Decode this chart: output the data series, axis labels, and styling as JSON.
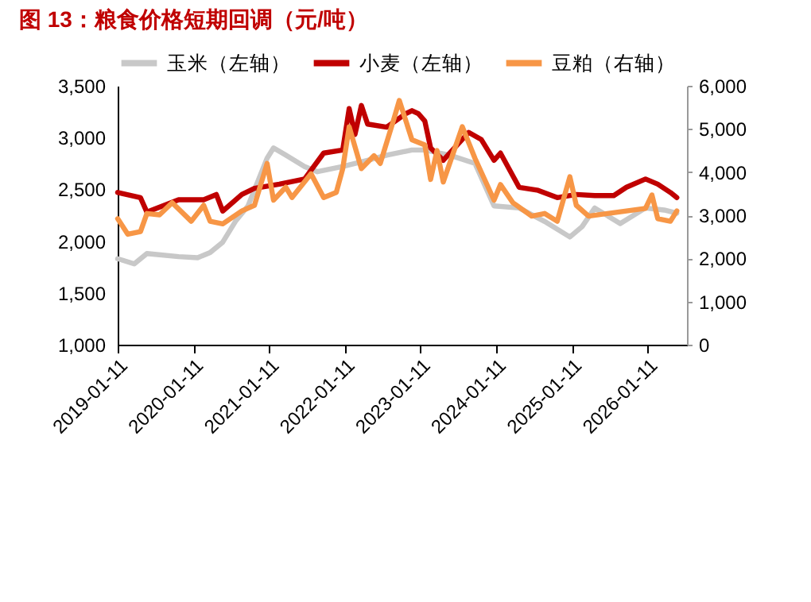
{
  "chart_data": {
    "type": "line",
    "title": "图 13：粮食价格短期回调（元/吨）",
    "xlim": [
      "2019-01-11",
      "2026-07-20"
    ],
    "xticks": [
      "2019-01-11",
      "2020-01-11",
      "2021-01-11",
      "2022-01-11",
      "2023-01-11",
      "2024-01-11",
      "2025-01-11",
      "2026-01-11"
    ],
    "ylim": [
      1000,
      3500
    ],
    "yticks": [
      {
        "value": 1000,
        "label": "1,000"
      },
      {
        "value": 1500,
        "label": "1,500"
      },
      {
        "value": 2000,
        "label": "2,000"
      },
      {
        "value": 2500,
        "label": "2,500"
      },
      {
        "value": 3000,
        "label": "3,000"
      },
      {
        "value": 3500,
        "label": "3,500"
      }
    ],
    "y2lim": [
      0,
      6000
    ],
    "y2ticks": [
      0,
      {
        "value": 1000,
        "label": "1,000"
      },
      {
        "value": 2000,
        "label": "2,000"
      },
      {
        "value": 3000,
        "label": "3,000"
      },
      {
        "value": 4000,
        "label": "4,000"
      },
      {
        "value": 5000,
        "label": "5,000"
      },
      {
        "value": 6000,
        "label": "6,000"
      }
    ],
    "grid": false,
    "legend": "top",
    "marker": "none",
    "line_style": "solid",
    "series": [
      {
        "name": "玉米（左轴）",
        "color": "#c8c8c8",
        "x": [
          "2019-01-11",
          "2019-04",
          "2019-06",
          "2019-11",
          "2020-02",
          "2020-04",
          "2020-06",
          "2020-08",
          "2020-10",
          "2021-01",
          "2021-02",
          "2021-04",
          "2021-07",
          "2021-09",
          "2022-01",
          "2022-05",
          "2022-08",
          "2022-12",
          "2023-02",
          "2023-06",
          "2023-10",
          "2024-01",
          "2024-05",
          "2024-09",
          "2025-01",
          "2025-03",
          "2025-05",
          "2025-09",
          "2026-01",
          "2026-04",
          "2026-06"
        ],
        "values": [
          1830,
          1780,
          1880,
          1850,
          1840,
          1890,
          1990,
          2190,
          2340,
          2800,
          2900,
          2830,
          2720,
          2670,
          2720,
          2780,
          2830,
          2880,
          2880,
          2830,
          2750,
          2340,
          2320,
          2190,
          2040,
          2140,
          2320,
          2170,
          2320,
          2300,
          2270
        ]
      },
      {
        "name": "小麦（左轴）",
        "color": "#c00000",
        "x": [
          "2019-01-11",
          "2019-05",
          "2019-06",
          "2019-11",
          "2020-03",
          "2020-05",
          "2020-06",
          "2020-09",
          "2020-11",
          "2021-03",
          "2021-07",
          "2021-10",
          "2022-01",
          "2022-02",
          "2022-03",
          "2022-04",
          "2022-05",
          "2022-08",
          "2022-11",
          "2022-12",
          "2023-01",
          "2023-02",
          "2023-03",
          "2023-05",
          "2023-06",
          "2023-09",
          "2023-11",
          "2024-01",
          "2024-02",
          "2024-05",
          "2024-08",
          "2024-11",
          "2025-02",
          "2025-05",
          "2025-08",
          "2025-10",
          "2026-01",
          "2026-03",
          "2026-05",
          "2026-06"
        ],
        "values": [
          2470,
          2420,
          2280,
          2400,
          2400,
          2450,
          2290,
          2450,
          2510,
          2550,
          2600,
          2850,
          2880,
          3280,
          3030,
          3310,
          3130,
          3100,
          3230,
          3260,
          3230,
          3160,
          2900,
          2780,
          2850,
          3050,
          2980,
          2780,
          2850,
          2520,
          2490,
          2420,
          2450,
          2440,
          2440,
          2520,
          2600,
          2550,
          2470,
          2420
        ]
      },
      {
        "name": "豆粕（右轴）",
        "color": "#f79646",
        "axis": "y2",
        "x": [
          "2019-01-11",
          "2019-03",
          "2019-05",
          "2019-06",
          "2019-08",
          "2019-10",
          "2020-01",
          "2020-03",
          "2020-04",
          "2020-06",
          "2020-09",
          "2020-11",
          "2021-01",
          "2021-02",
          "2021-04",
          "2021-05",
          "2021-08",
          "2021-10",
          "2021-12",
          "2022-01",
          "2022-02",
          "2022-04",
          "2022-06",
          "2022-07",
          "2022-09",
          "2022-10",
          "2022-12",
          "2023-02",
          "2023-03",
          "2023-04",
          "2023-05",
          "2023-08",
          "2023-10",
          "2024-01",
          "2024-02",
          "2024-04",
          "2024-07",
          "2024-09",
          "2024-11",
          "2025-01",
          "2025-02",
          "2025-04",
          "2025-07",
          "2026-01",
          "2026-02",
          "2026-03",
          "2026-05",
          "2026-06"
        ],
        "values": [
          2920,
          2560,
          2620,
          3040,
          3010,
          3290,
          2860,
          3230,
          2860,
          2800,
          3100,
          3230,
          4200,
          3350,
          3650,
          3410,
          3960,
          3410,
          3530,
          4080,
          5050,
          4080,
          4380,
          4200,
          5170,
          5660,
          4750,
          4630,
          3830,
          4500,
          3770,
          5050,
          4320,
          3350,
          3710,
          3290,
          2980,
          3040,
          2860,
          3890,
          3230,
          2980,
          3040,
          3160,
          3470,
          2920,
          2860,
          3100
        ]
      }
    ]
  }
}
